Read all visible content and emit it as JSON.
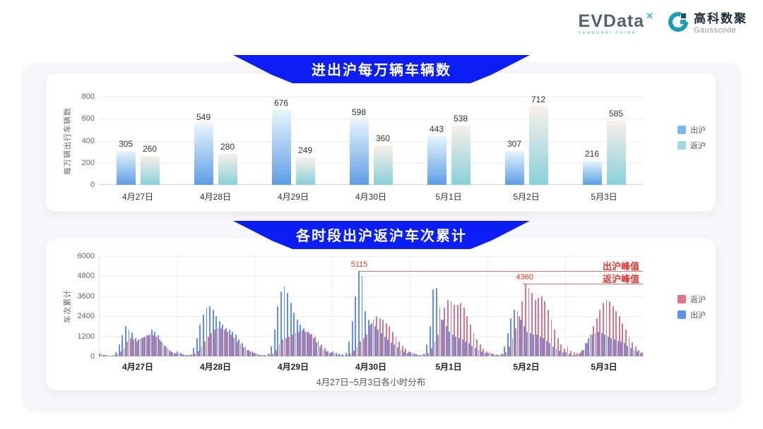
{
  "logo": {
    "evdata_text": "EVData",
    "evdata_sup": "✕",
    "evdata_sub": "SHANGHAI CHINA",
    "gausscode_cn": "高科数聚",
    "gausscode_en": "Gausscode"
  },
  "colors": {
    "banner_blue": "#0a1ef5",
    "annotation_red": "#e0372e",
    "panel_gray": "#f7f7f9"
  },
  "chart_data": [
    {
      "type": "bar",
      "title": "进出沪每万辆车辆数",
      "ylabel": "每万辆出行车辆数",
      "xlabel": "",
      "ylim": [
        0,
        800
      ],
      "yticks": [
        0,
        200,
        400,
        600,
        800
      ],
      "grid": true,
      "legend_position": "right",
      "categories": [
        "4月27日",
        "4月28日",
        "4月29日",
        "4月30日",
        "5月1日",
        "5月2日",
        "5月3日"
      ],
      "series": [
        {
          "name": "出沪",
          "gradient": [
            "#e6f5fc",
            "#5e9de6"
          ],
          "values": [
            305,
            549,
            676,
            598,
            443,
            307,
            216
          ]
        },
        {
          "name": "返沪",
          "gradient": [
            "#f8efe9",
            "#89d0d9"
          ],
          "values": [
            260,
            280,
            249,
            360,
            538,
            712,
            585
          ]
        }
      ],
      "legend": [
        {
          "label": "出沪",
          "color": "#7db7ea"
        },
        {
          "label": "返沪",
          "color": "#a0d8de"
        }
      ],
      "value_labels": true
    },
    {
      "type": "bar",
      "title": "各时段出沪返沪车次累计",
      "ylabel": "车次累计",
      "xlabel": "4月27日~5月3日各小时分布",
      "ylim": [
        0,
        6000
      ],
      "yticks": [
        0,
        1200,
        2400,
        3600,
        4800,
        6000
      ],
      "grid": true,
      "legend_position": "right",
      "categories": [
        "4月27日",
        "4月28日",
        "4月29日",
        "4月30日",
        "5月1日",
        "5月2日",
        "5月3日"
      ],
      "hours_per_day": 24,
      "series": [
        {
          "name": "出沪",
          "color": "#5d8ff1",
          "values_by_day": [
            [
              150,
              100,
              80,
              60,
              80,
              250,
              700,
              1250,
              1800,
              1600,
              1450,
              1100,
              1000,
              1100,
              1200,
              1250,
              1600,
              1500,
              1250,
              900,
              650,
              450,
              300,
              200
            ],
            [
              300,
              200,
              120,
              100,
              120,
              500,
              1100,
              1900,
              2500,
              2900,
              3000,
              2800,
              2400,
              2100,
              1900,
              1700,
              1600,
              1500,
              1300,
              1000,
              800,
              600,
              400,
              280
            ],
            [
              200,
              120,
              100,
              80,
              150,
              600,
              1600,
              3000,
              3900,
              4200,
              3800,
              3200,
              2600,
              2200,
              1900,
              1700,
              1500,
              1300,
              1100,
              850,
              600,
              400,
              300,
              200
            ],
            [
              300,
              200,
              150,
              120,
              200,
              900,
              2100,
              3600,
              5115,
              4800,
              2700,
              2200,
              2000,
              1800,
              1600,
              1400,
              1200,
              1000,
              850,
              700,
              550,
              400,
              300,
              200
            ],
            [
              250,
              150,
              120,
              100,
              150,
              700,
              1800,
              4000,
              4100,
              2900,
              2200,
              1800,
              1500,
              1300,
              1200,
              1100,
              1000,
              900,
              800,
              650,
              500,
              400,
              300,
              200
            ],
            [
              200,
              150,
              100,
              100,
              150,
              600,
              1400,
              2300,
              2800,
              2700,
              2200,
              1800,
              1500,
              1400,
              1300,
              1300,
              1200,
              1100,
              950,
              800,
              600,
              450,
              350,
              250
            ],
            [
              250,
              150,
              100,
              100,
              150,
              400,
              800,
              1100,
              1300,
              1400,
              1500,
              1400,
              1300,
              1200,
              1100,
              1000,
              950,
              900,
              800,
              650,
              500,
              400,
              300,
              200
            ]
          ]
        },
        {
          "name": "返沪",
          "color": "#df7489",
          "values_by_day": [
            [
              120,
              80,
              60,
              50,
              60,
              120,
              300,
              500,
              900,
              1100,
              1000,
              900,
              1050,
              1150,
              1250,
              1300,
              1250,
              1200,
              1000,
              800,
              600,
              400,
              250,
              150
            ],
            [
              200,
              120,
              100,
              80,
              100,
              150,
              350,
              600,
              900,
              1200,
              1400,
              1600,
              1700,
              1700,
              1600,
              1500,
              1300,
              1100,
              900,
              750,
              550,
              400,
              280,
              200
            ],
            [
              150,
              100,
              80,
              60,
              100,
              150,
              400,
              700,
              1000,
              1100,
              1200,
              1300,
              1400,
              1500,
              1550,
              1500,
              1450,
              1350,
              1200,
              950,
              700,
              500,
              350,
              250
            ],
            [
              150,
              100,
              80,
              60,
              80,
              150,
              350,
              600,
              900,
              1100,
              1300,
              1900,
              2200,
              2400,
              2300,
              2200,
              2000,
              1800,
              1500,
              1200,
              900,
              650,
              450,
              300
            ],
            [
              200,
              120,
              100,
              80,
              100,
              200,
              500,
              900,
              1300,
              2200,
              2900,
              3400,
              3300,
              3100,
              3100,
              3200,
              2900,
              2400,
              1900,
              1400,
              1000,
              700,
              450,
              300
            ],
            [
              250,
              150,
              120,
              100,
              120,
              250,
              600,
              1100,
              1700,
              2400,
              3300,
              4360,
              4100,
              3800,
              3400,
              3500,
              3600,
              3300,
              2800,
              2200,
              1600,
              1100,
              700,
              450
            ],
            [
              600,
              350,
              250,
              200,
              250,
              400,
              800,
              1300,
              1800,
              2300,
              2800,
              3200,
              3400,
              3300,
              3000,
              2700,
              2400,
              2000,
              1600,
              1200,
              850,
              600,
              400,
              250
            ]
          ]
        }
      ],
      "legend": [
        {
          "label": "返沪",
          "color": "#df7489"
        },
        {
          "label": "出沪",
          "color": "#5d8ff1"
        }
      ],
      "annotations": [
        {
          "value": 5115,
          "value_label": "5115",
          "text": "出沪峰值",
          "day_index": 3,
          "hour": 8
        },
        {
          "value": 4360,
          "value_label": "4360",
          "text": "返沪峰值",
          "day_index": 5,
          "hour": 11
        }
      ]
    }
  ]
}
